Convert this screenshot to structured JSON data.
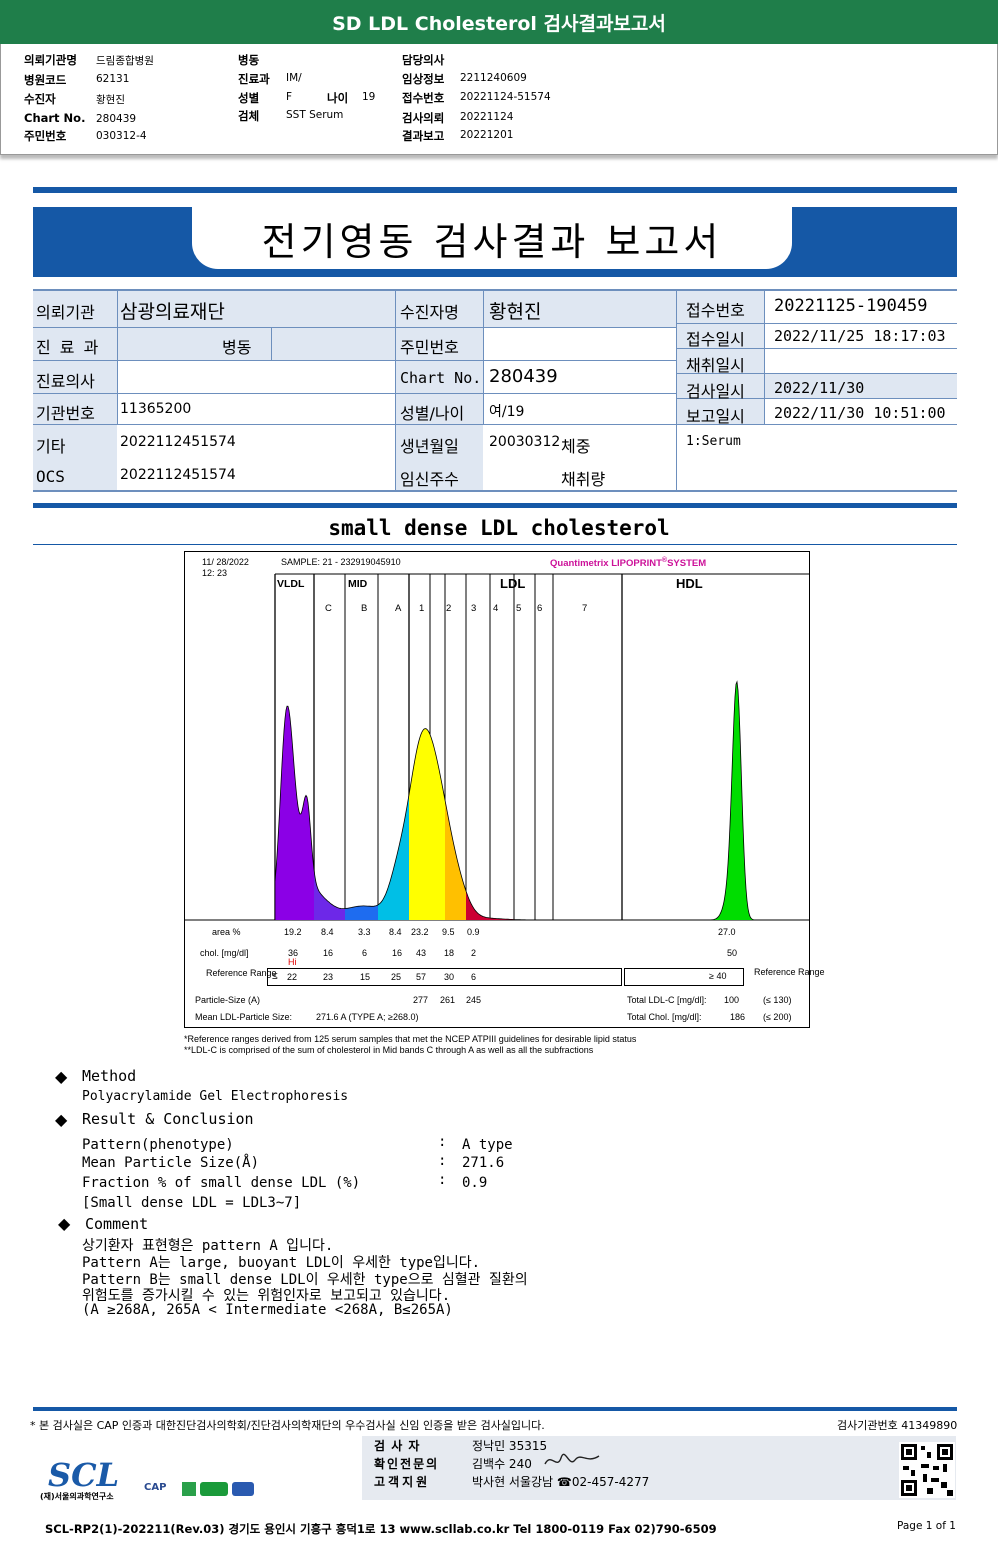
{
  "banner": {
    "title": "SD LDL Cholesterol 검사결과보고서"
  },
  "header": {
    "col1": [
      {
        "label": "의뢰기관명",
        "value": "드림종합병원"
      },
      {
        "label": "병원코드",
        "value": "62131"
      },
      {
        "label": "수진자",
        "value": "황현진"
      },
      {
        "label": "Chart No.",
        "value": "280439"
      },
      {
        "label": "주민번호",
        "value": "030312-4"
      }
    ],
    "col2": [
      {
        "label": "병동",
        "value": ""
      },
      {
        "label": "진료과",
        "value": "IM/"
      },
      {
        "label": "성별",
        "value": "F"
      },
      {
        "label": "검체",
        "value": "SST Serum"
      }
    ],
    "age": {
      "label": "나이",
      "value": "19"
    },
    "col3": [
      {
        "label": "담당의사",
        "value": ""
      },
      {
        "label": "임상정보",
        "value": "2211240609"
      },
      {
        "label": "접수번호",
        "value": "20221124-51574"
      },
      {
        "label": "검사의뢰",
        "value": "20221124"
      },
      {
        "label": "결과보고",
        "value": "20221201"
      }
    ]
  },
  "report": {
    "title": "전기영동 검사결과 보고서"
  },
  "info": {
    "org_label": "의뢰기관",
    "org": "삼광의료재단",
    "patient_label": "수진자명",
    "patient": "황현진",
    "rcv_no_label": "접수번호",
    "rcv_no": "20221125-190459",
    "dept_label": "진 료 과",
    "ward": "병동",
    "rrn_label": "주민번호",
    "rrn": "",
    "rcv_date_label": "접수일시",
    "rcv_date": "2022/11/25 18:17:03",
    "collect_label": "채취일시",
    "collect": "",
    "doctor_label": "진료의사",
    "doctor": "",
    "chart_label": "Chart No.",
    "chart": "280439",
    "test_date_label": "검사일시",
    "test_date": "2022/11/30",
    "inst_label": "기관번호",
    "inst": "11365200",
    "sexage_label": "성별/나이",
    "sexage": "여/19",
    "report_date_label": "보고일시",
    "report_date": "2022/11/30 10:51:00",
    "etc_label": "기타",
    "etc": "2022112451574",
    "dob_label": "생년월일",
    "dob": "20030312",
    "weight_label": "체중",
    "specimen": "1:Serum",
    "ocs_label": "OCS",
    "ocs": "2022112451574",
    "preg_label": "임신주수",
    "amount_label": "채취량"
  },
  "section_title": "small dense LDL cholesterol",
  "chart_data": {
    "type": "area",
    "date": "11/ 28/2022",
    "time": "12: 23",
    "sample": "SAMPLE:   21 - 232919045910",
    "brand": "Quantimetrix LIPOPRINT",
    "brand_mark": "®",
    "brand_suffix": "SYSTEM",
    "groups": [
      "VLDL",
      "MID",
      "LDL",
      "HDL"
    ],
    "bands": [
      "C",
      "B",
      "A",
      "1",
      "2",
      "3",
      "4",
      "5",
      "6",
      "7"
    ],
    "area_label": "area %",
    "area": [
      "19.2",
      "8.4",
      "3.3",
      "8.4",
      "23.2",
      "9.5",
      "0.9",
      "27.0"
    ],
    "chol_label": "chol. [mg/dl]",
    "chol": [
      "36",
      "16",
      "6",
      "16",
      "43",
      "18",
      "2",
      "50"
    ],
    "chol_flag": "Hi",
    "ref_label": "Reference Range",
    "ref_prefix": "≤",
    "ref": [
      "22",
      "23",
      "15",
      "25",
      "57",
      "30",
      "6"
    ],
    "ref_hdl": "≥  40",
    "ref_right": "Reference Range",
    "particle_label": "Particle-Size (A)",
    "particle": [
      "277",
      "261",
      "245"
    ],
    "mean_label": "Mean LDL-Particle Size:",
    "mean_value": "271.6  A    (TYPE A; ≥268.0)",
    "total_ldl_label": "Total LDL-C [mg/dl]:",
    "total_ldl": "100",
    "total_ldl_ref": "(≤ 130)",
    "total_chol_label": "Total Chol. [mg/dl]:",
    "total_chol": "186",
    "total_chol_ref": "(≤ 200)",
    "colors": [
      "#8b00e6",
      "#6d28e8",
      "#1e6cf0",
      "#00bfe6",
      "#ffff00",
      "#ffc000",
      "#f28a1e",
      "#cc0033",
      "#00dd00"
    ]
  },
  "footnotes": [
    "*Reference ranges derived from 125 serum samples that met the NCEP ATPIII guidelines for desirable lipid status",
    "**LDL-C is comprised of the sum of cholesterol in Mid bands C through A as well as all the subfractions"
  ],
  "method": {
    "title": "Method",
    "text": "Polyacrylamide Gel Electrophoresis"
  },
  "result": {
    "title": "Result & Conclusion",
    "rows": [
      {
        "label": "Pattern(phenotype)",
        "value": "A type"
      },
      {
        "label": "Mean Particle Size(Å)",
        "value": "271.6"
      },
      {
        "label": "Fraction % of small dense LDL (%)",
        "value": "0.9"
      }
    ],
    "sep": ":",
    "note": "[Small dense LDL = LDL3~7]"
  },
  "comment": {
    "title": "Comment",
    "lines": [
      "상기환자 표현형은 pattern A 입니다.",
      "Pattern A는 large, buoyant LDL이 우세한 type입니다.",
      "Pattern B는 small dense LDL이 우세한 type으로 심혈관 질환의",
      "위험도를 증가시킬 수 있는 위험인자로 보고되고 있습니다.",
      "(A ≥268A, 265A < Intermediate <268A, B≤265A)"
    ]
  },
  "footer": {
    "notice": "* 본 검사실은 CAP 인증과 대한진단검사의학회/진단검사의학재단의 우수검사실 신임 인증을 받은 검사실입니다.",
    "lab_no": "검사기관번호 41349890",
    "logo": "SCL",
    "logo_sub": "(재)서울의과학연구소",
    "cap": "CAP",
    "staff": [
      {
        "role": "검  사  자",
        "value": "정낙민 35315"
      },
      {
        "role": "확인전문의",
        "value": "김백수 240"
      },
      {
        "role": "고객지원",
        "value": "박사현 서울강남 ☎02-457-4277"
      }
    ],
    "address": "SCL-RP2(1)-202211(Rev.03)  경기도 용인시 기흥구 흥덕1로 13  www.scllab.co.kr  Tel 1800-0119   Fax 02)790-6509",
    "page": "Page 1 of 1"
  }
}
